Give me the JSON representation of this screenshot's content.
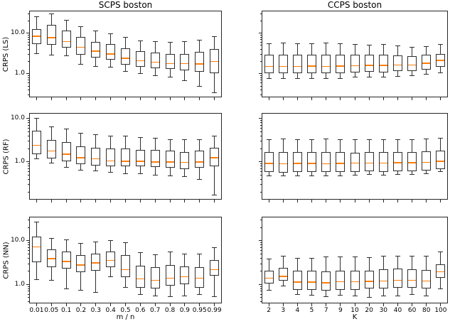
{
  "figure_style": {
    "background": "#ffffff",
    "spine_color": "#262626",
    "box_edge_color": "#2e2e2e",
    "median_color": "#ff7f0e",
    "text_color": "#000000"
  },
  "chart_data": [
    {
      "type": "boxplot",
      "name": "scps-boston-ls",
      "title": "SCPS boston",
      "row": 0,
      "col": 0,
      "ylabel": "CRPS (LS)",
      "xlabel": "m / n",
      "yscale": "log",
      "ylim": [
        0.265,
        35.7
      ],
      "ytick_values": [
        10,
        1
      ],
      "ytick_labels": [
        "10.0",
        "1.0"
      ],
      "categories": [
        "0.01",
        "0.05",
        "0.1",
        "0.2",
        "0.3",
        "0.4",
        "0.5",
        "0.6",
        "0.7",
        "0.8",
        "0.9",
        "0.95",
        "0.99"
      ],
      "stats": {
        "whislo": [
          3.2,
          2.9,
          2.8,
          1.7,
          1.55,
          1.45,
          1.15,
          1.0,
          0.9,
          0.82,
          0.68,
          0.5,
          0.35
        ],
        "q1": [
          5.3,
          5.1,
          4.4,
          3.0,
          2.55,
          2.2,
          1.7,
          1.5,
          1.4,
          1.3,
          1.2,
          1.12,
          1.05
        ],
        "med": [
          8.4,
          7.8,
          6.2,
          4.5,
          3.6,
          3.1,
          2.4,
          2.1,
          1.95,
          1.8,
          1.8,
          1.75,
          2.0
        ],
        "q3": [
          12.6,
          15.8,
          11.5,
          8.2,
          6.0,
          5.3,
          4.2,
          3.6,
          3.3,
          3.1,
          3.1,
          3.5,
          4.1
        ],
        "whishi": [
          25,
          30,
          21,
          14.5,
          11.3,
          9.8,
          7.9,
          6.6,
          6.2,
          6.0,
          6.3,
          6.7,
          8.3
        ]
      }
    },
    {
      "type": "boxplot",
      "name": "ccps-boston-ls",
      "title": "CCPS boston",
      "row": 0,
      "col": 1,
      "ylabel": "CRPS (LS)",
      "xlabel": "K",
      "yscale": "log",
      "ylim": [
        0.265,
        35.7
      ],
      "ytick_values": [
        10,
        1
      ],
      "ytick_labels": [
        "10.0",
        "1.0"
      ],
      "categories": [
        "2",
        "3",
        "4",
        "5",
        "7",
        "9",
        "10",
        "20",
        "30",
        "40",
        "60",
        "80",
        "100"
      ],
      "stats": {
        "whislo": [
          0.78,
          0.76,
          0.77,
          0.78,
          0.78,
          0.76,
          0.82,
          0.85,
          0.83,
          0.88,
          0.9,
          0.98,
          1.06
        ],
        "q1": [
          1.02,
          1.02,
          1.02,
          1.03,
          1.05,
          1.03,
          1.1,
          1.12,
          1.1,
          1.15,
          1.17,
          1.29,
          1.48
        ],
        "med": [
          1.52,
          1.52,
          1.53,
          1.55,
          1.53,
          1.54,
          1.57,
          1.62,
          1.62,
          1.65,
          1.66,
          1.82,
          2.14
        ],
        "q3": [
          3.0,
          3.0,
          3.0,
          3.0,
          3.0,
          3.0,
          2.9,
          2.9,
          2.9,
          2.85,
          2.75,
          2.9,
          3.1
        ],
        "whishi": [
          5.6,
          5.7,
          5.6,
          5.6,
          5.7,
          5.6,
          5.3,
          5.15,
          5.2,
          4.9,
          4.5,
          4.7,
          5.2
        ]
      }
    },
    {
      "type": "boxplot",
      "name": "scps-boston-rf",
      "title": "SCPS boston",
      "row": 1,
      "col": 0,
      "ylabel": "CRPS (RF)",
      "xlabel": "m / n",
      "yscale": "log",
      "ylim": [
        0.134,
        13.4
      ],
      "ytick_values": [
        10,
        1
      ],
      "ytick_labels": [
        "10.0",
        "1.0"
      ],
      "categories": [
        "0.01",
        "0.05",
        "0.1",
        "0.2",
        "0.3",
        "0.4",
        "0.5",
        "0.6",
        "0.7",
        "0.8",
        "0.9",
        "0.95",
        "0.99"
      ],
      "stats": {
        "whislo": [
          1.18,
          0.92,
          0.76,
          0.63,
          0.62,
          0.57,
          0.54,
          0.53,
          0.5,
          0.47,
          0.46,
          0.4,
          0.17
        ],
        "q1": [
          1.51,
          1.18,
          1.04,
          0.88,
          0.82,
          0.8,
          0.78,
          0.78,
          0.75,
          0.72,
          0.68,
          0.72,
          0.78
        ],
        "med": [
          2.42,
          1.79,
          1.51,
          1.25,
          1.18,
          1.05,
          1.02,
          1.03,
          1.0,
          1.0,
          0.97,
          1.0,
          1.25
        ],
        "q3": [
          5.15,
          3.2,
          2.84,
          2.3,
          2.1,
          2.05,
          2.0,
          1.9,
          1.85,
          1.8,
          1.7,
          1.8,
          2.1
        ],
        "whishi": [
          10.2,
          6.3,
          5.8,
          4.5,
          4.2,
          3.9,
          3.9,
          3.6,
          3.5,
          3.3,
          3.3,
          3.3,
          4.0
        ]
      }
    },
    {
      "type": "boxplot",
      "name": "ccps-boston-rf",
      "title": "CCPS boston",
      "row": 1,
      "col": 1,
      "ylabel": "CRPS (RF)",
      "xlabel": "K",
      "yscale": "log",
      "ylim": [
        0.134,
        13.4
      ],
      "ytick_values": [
        10,
        1
      ],
      "ytick_labels": [
        "10.0",
        "1.0"
      ],
      "categories": [
        "2",
        "3",
        "4",
        "5",
        "7",
        "9",
        "10",
        "20",
        "30",
        "40",
        "60",
        "80",
        "100"
      ],
      "stats": {
        "whislo": [
          0.48,
          0.47,
          0.47,
          0.48,
          0.47,
          0.48,
          0.5,
          0.51,
          0.49,
          0.52,
          0.52,
          0.54,
          0.6
        ],
        "q1": [
          0.58,
          0.57,
          0.58,
          0.58,
          0.58,
          0.58,
          0.59,
          0.6,
          0.59,
          0.61,
          0.61,
          0.62,
          0.68
        ],
        "med": [
          0.92,
          0.91,
          0.92,
          0.92,
          0.91,
          0.92,
          0.93,
          0.94,
          0.93,
          0.95,
          0.95,
          0.97,
          1.02
        ],
        "q3": [
          1.66,
          1.68,
          1.66,
          1.66,
          1.68,
          1.67,
          1.64,
          1.66,
          1.66,
          1.7,
          1.7,
          1.74,
          1.82
        ],
        "whishi": [
          3.25,
          3.35,
          3.28,
          3.25,
          3.35,
          3.3,
          3.25,
          3.2,
          3.25,
          3.3,
          3.28,
          3.35,
          3.45
        ]
      }
    },
    {
      "type": "boxplot",
      "name": "scps-boston-nn",
      "title": "SCPS boston",
      "row": 2,
      "col": 0,
      "ylabel": "CRPS (NN)",
      "xlabel": "m / n",
      "yscale": "log",
      "ylim": [
        0.37,
        35.7
      ],
      "ytick_values": [
        10,
        1
      ],
      "ytick_labels": [
        "10.0",
        "1.0"
      ],
      "categories": [
        "0.01",
        "0.05",
        "0.1",
        "0.2",
        "0.3",
        "0.4",
        "0.5",
        "0.6",
        "0.7",
        "0.8",
        "0.9",
        "0.95",
        "0.99"
      ],
      "stats": {
        "whislo": [
          1.3,
          1.25,
          0.8,
          0.75,
          0.65,
          1.5,
          0.85,
          0.58,
          0.55,
          0.52,
          0.55,
          0.6,
          0.52
        ],
        "q1": [
          3.2,
          2.5,
          2.3,
          1.9,
          2.1,
          2.5,
          1.5,
          0.85,
          0.8,
          0.95,
          1.0,
          0.85,
          1.6
        ],
        "med": [
          7.3,
          3.9,
          3.4,
          2.8,
          3.1,
          3.6,
          2.2,
          1.35,
          1.25,
          1.4,
          1.5,
          1.4,
          2.2
        ],
        "q3": [
          12.5,
          6.3,
          5.6,
          4.8,
          5.0,
          5.8,
          4.8,
          2.7,
          2.5,
          2.8,
          2.6,
          2.5,
          3.6
        ],
        "whishi": [
          27,
          11.3,
          10.4,
          8.8,
          9.5,
          10.3,
          9.2,
          5.4,
          4.8,
          5.6,
          5.0,
          5.0,
          7.0
        ]
      }
    },
    {
      "type": "boxplot",
      "name": "ccps-boston-nn",
      "title": "CCPS boston",
      "row": 2,
      "col": 1,
      "ylabel": "CRPS (NN)",
      "xlabel": "K",
      "yscale": "log",
      "ylim": [
        0.37,
        35.7
      ],
      "ytick_values": [
        10,
        1
      ],
      "ytick_labels": [
        "10.0",
        "1.0"
      ],
      "categories": [
        "2",
        "3",
        "4",
        "5",
        "7",
        "9",
        "10",
        "20",
        "30",
        "40",
        "60",
        "80",
        "100"
      ],
      "stats": {
        "whislo": [
          0.75,
          0.92,
          0.58,
          0.56,
          0.53,
          0.56,
          0.55,
          0.5,
          0.55,
          0.55,
          0.58,
          0.55,
          0.8
        ],
        "q1": [
          1.07,
          1.23,
          0.75,
          0.75,
          0.73,
          0.75,
          0.76,
          0.8,
          0.8,
          0.85,
          0.85,
          0.8,
          1.4
        ],
        "med": [
          1.4,
          1.55,
          1.13,
          1.13,
          1.1,
          1.15,
          1.15,
          1.18,
          1.2,
          1.25,
          1.25,
          1.2,
          1.95
        ],
        "q3": [
          2.1,
          2.45,
          2.05,
          2.05,
          2.0,
          2.1,
          2.1,
          2.1,
          2.2,
          2.3,
          2.2,
          2.15,
          2.9
        ],
        "whishi": [
          3.9,
          4.4,
          4.0,
          4.0,
          4.3,
          4.35,
          4.3,
          4.2,
          4.4,
          4.5,
          4.4,
          4.4,
          5.5
        ]
      }
    }
  ]
}
